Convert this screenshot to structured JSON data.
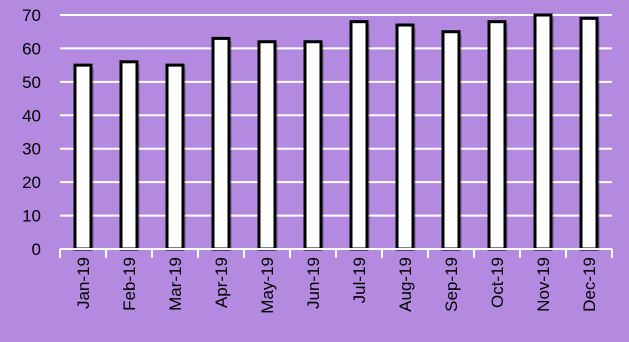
{
  "chart_data": {
    "type": "bar",
    "title": "",
    "xlabel": "",
    "ylabel": "",
    "categories": [
      "Jan-19",
      "Feb-19",
      "Mar-19",
      "Apr-19",
      "May-19",
      "Jun-19",
      "Jul-19",
      "Aug-19",
      "Sep-19",
      "Oct-19",
      "Nov-19",
      "Dec-19"
    ],
    "values": [
      55,
      56,
      55,
      63,
      62,
      62,
      68,
      67,
      65,
      68,
      70,
      69
    ],
    "ylim": [
      0,
      70
    ],
    "yticks": [
      "0",
      "10",
      "20",
      "30",
      "40",
      "50",
      "60",
      "70"
    ],
    "grid": true,
    "legend": "none"
  },
  "colors": {
    "background": "#b38ae0",
    "bar_fill": "#ffffff",
    "bar_stroke": "#000000",
    "gridline": "#ffffff",
    "axis": "#ffffff",
    "tick_label": "#000000"
  }
}
